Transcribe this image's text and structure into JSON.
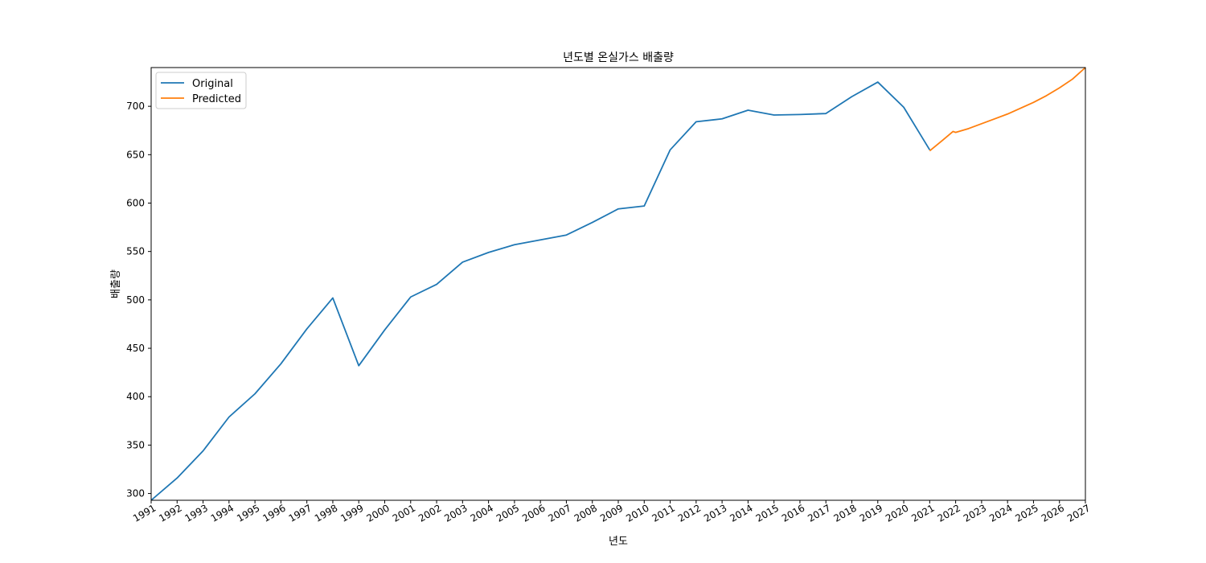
{
  "chart_data": {
    "type": "line",
    "title": "년도별 온실가스 배출량",
    "xlabel": "년도",
    "ylabel": "배출량",
    "xlim": [
      1991,
      2027
    ],
    "ylim": [
      293,
      740
    ],
    "x_ticks": [
      "1991",
      "1992",
      "1993",
      "1994",
      "1995",
      "1996",
      "1997",
      "1998",
      "1999",
      "2000",
      "2001",
      "2002",
      "2003",
      "2004",
      "2005",
      "2006",
      "2007",
      "2008",
      "2009",
      "2010",
      "2011",
      "2012",
      "2013",
      "2014",
      "2015",
      "2016",
      "2017",
      "2018",
      "2019",
      "2020",
      "2021",
      "2022",
      "2023",
      "2024",
      "2025",
      "2026",
      "2027"
    ],
    "y_ticks": [
      300,
      350,
      400,
      450,
      500,
      550,
      600,
      650,
      700
    ],
    "grid": false,
    "legend_position": "upper-left",
    "series": [
      {
        "name": "Original",
        "color": "#1f77b4",
        "x": [
          1991,
          1992,
          1993,
          1994,
          1995,
          1996,
          1997,
          1998,
          1999,
          2000,
          2001,
          2002,
          2003,
          2004,
          2005,
          2006,
          2007,
          2008,
          2009,
          2010,
          2011,
          2012,
          2013,
          2014,
          2015,
          2016,
          2017,
          2018,
          2019,
          2020,
          2021
        ],
        "y": [
          293,
          316,
          344,
          379,
          403,
          434,
          470,
          502,
          432,
          469,
          503,
          516,
          539,
          549,
          557,
          562,
          567,
          580,
          594,
          597,
          655,
          684,
          687,
          696,
          691,
          691.5,
          692.5,
          710,
          725,
          699,
          655
        ]
      },
      {
        "name": "Predicted",
        "color": "#ff7f0e",
        "x": [
          2021,
          2021.5,
          2021.9,
          2022,
          2022.5,
          2023,
          2023.5,
          2024,
          2024.5,
          2025,
          2025.5,
          2026,
          2026.5,
          2027
        ],
        "y": [
          654,
          665,
          674,
          673,
          677,
          682,
          687,
          692,
          698,
          704,
          711,
          719,
          728,
          740
        ]
      }
    ]
  }
}
